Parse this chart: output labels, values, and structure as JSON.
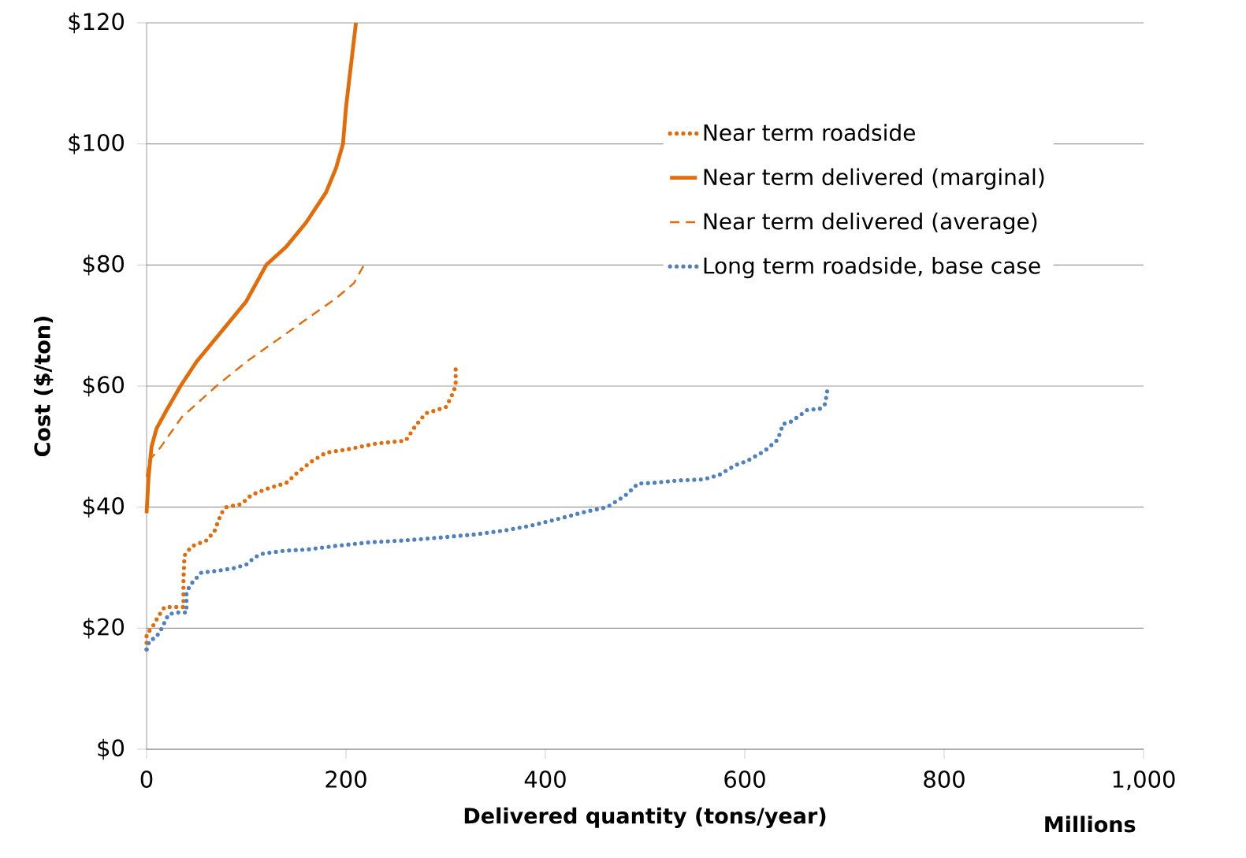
{
  "chart_data": {
    "type": "line",
    "xlabel": "Delivered quantity (tons/year)",
    "ylabel": "Cost ($/ton)",
    "annotations": [
      "Millions"
    ],
    "xlim": [
      0,
      1000
    ],
    "ylim": [
      0,
      120
    ],
    "xticks": [
      0,
      200,
      400,
      600,
      800,
      {
        "value": 1000,
        "label": "1,000"
      }
    ],
    "yticks": [
      {
        "value": 0,
        "label": "$0"
      },
      {
        "value": 20,
        "label": "$20"
      },
      {
        "value": 40,
        "label": "$40"
      },
      {
        "value": 60,
        "label": "$60"
      },
      {
        "value": 80,
        "label": "$80"
      },
      {
        "value": 100,
        "label": "$100"
      },
      {
        "value": 120,
        "label": "$120"
      }
    ],
    "grid": "y",
    "legend": "top right",
    "series": [
      {
        "name": "Near term roadside",
        "color": "#e36c09",
        "line_style": "dotted",
        "x": [
          0,
          0,
          5,
          12,
          18,
          37,
          37,
          38,
          45,
          60,
          68,
          75,
          80,
          95,
          105,
          120,
          140,
          150,
          165,
          180,
          200,
          230,
          260,
          270,
          280,
          300,
          305,
          310,
          310
        ],
        "values": [
          16.5,
          19,
          20,
          22,
          23.5,
          23.5,
          28,
          32,
          33.5,
          34.5,
          36,
          39,
          40,
          40.5,
          42,
          43,
          44,
          45.5,
          47.5,
          49,
          49.5,
          50.5,
          51,
          53.5,
          55.5,
          56.5,
          58,
          60,
          63.5
        ]
      },
      {
        "name": "Near term delivered (marginal)",
        "color": "#e36c09",
        "line_style": "solid",
        "x": [
          0,
          2,
          5,
          10,
          20,
          34,
          50,
          65,
          80,
          100,
          120,
          140,
          160,
          180,
          190,
          197,
          200,
          205,
          210
        ],
        "values": [
          39,
          45,
          50,
          53,
          56,
          60,
          64,
          67,
          70,
          74,
          80,
          83,
          87,
          92,
          96,
          100,
          106,
          113,
          120
        ]
      },
      {
        "name": "Near term delivered (average)",
        "color": "#e36c09",
        "line_style": "dashed",
        "x": [
          0,
          3,
          11,
          35,
          70,
          100,
          130,
          160,
          190,
          208,
          218
        ],
        "values": [
          45,
          47.9,
          49.2,
          54.8,
          60,
          64,
          67.5,
          71,
          74.5,
          77,
          80
        ]
      },
      {
        "name": "Long term roadside, base case",
        "color": "#4f81bd",
        "line_style": "dotted",
        "x": [
          0,
          3,
          9,
          14,
          22,
          30,
          40,
          40,
          44,
          55,
          72,
          90,
          101,
          108,
          116,
          138,
          161,
          190,
          225,
          259,
          296,
          330,
          361,
          387,
          409,
          430,
          442,
          462,
          480,
          493,
          507,
          533,
          559,
          574,
          590,
          602,
          620,
          632,
          636,
          638,
          646,
          654,
          663,
          675,
          681,
          682,
          684
        ],
        "values": [
          16.5,
          18,
          18.4,
          19.6,
          22.3,
          22.6,
          22.6,
          25.9,
          27.2,
          29.2,
          29.5,
          30,
          30.6,
          31.7,
          32.3,
          32.8,
          33,
          33.6,
          34.2,
          34.5,
          35,
          35.5,
          36.2,
          37,
          37.9,
          38.8,
          39.3,
          40,
          41.9,
          43.9,
          44,
          44.4,
          44.6,
          45.3,
          46.9,
          47.6,
          49.3,
          51,
          52.4,
          53.7,
          54.1,
          55,
          56.1,
          56.2,
          57.1,
          58.7,
          60
        ]
      }
    ]
  }
}
